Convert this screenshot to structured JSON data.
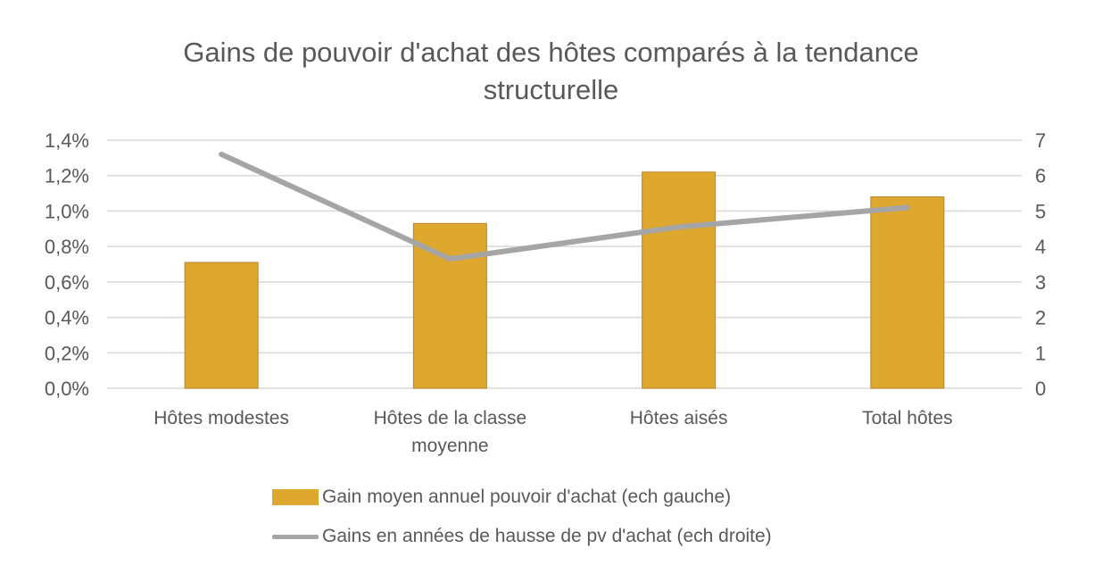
{
  "chart_data": {
    "type": "bar+line",
    "title": "Gains de pouvoir d'achat des hôtes comparés à la tendance structurelle",
    "title_lines": [
      "Gains de pouvoir d'achat des hôtes comparés à la tendance",
      "structurelle"
    ],
    "categories": [
      "Hôtes modestes",
      "Hôtes de la classe moyenne",
      "Hôtes aisés",
      "Total hôtes"
    ],
    "category_lines": [
      [
        "Hôtes modestes"
      ],
      [
        "Hôtes de la classe",
        "moyenne"
      ],
      [
        "Hôtes aisés"
      ],
      [
        "Total hôtes"
      ]
    ],
    "series": [
      {
        "name": "Gain moyen annuel pouvoir d'achat (ech gauche)",
        "type": "bar",
        "axis": "left",
        "color": "#DEA72E",
        "values": [
          0.71,
          0.93,
          1.22,
          1.08
        ],
        "unit": "%"
      },
      {
        "name": "Gains en années de hausse de pv d'achat (ech droite)",
        "type": "line",
        "axis": "right",
        "color": "#A5A5A5",
        "values": [
          6.6,
          3.65,
          4.55,
          5.1
        ]
      }
    ],
    "left_axis": {
      "ylim": [
        0,
        1.4
      ],
      "ticks": [
        "0,0%",
        "0,2%",
        "0,4%",
        "0,6%",
        "0,8%",
        "1,0%",
        "1,2%",
        "1,4%"
      ]
    },
    "right_axis": {
      "ylim": [
        0,
        7
      ],
      "ticks": [
        "0",
        "1",
        "2",
        "3",
        "4",
        "5",
        "6",
        "7"
      ]
    },
    "grid": true,
    "legend_position": "bottom"
  }
}
